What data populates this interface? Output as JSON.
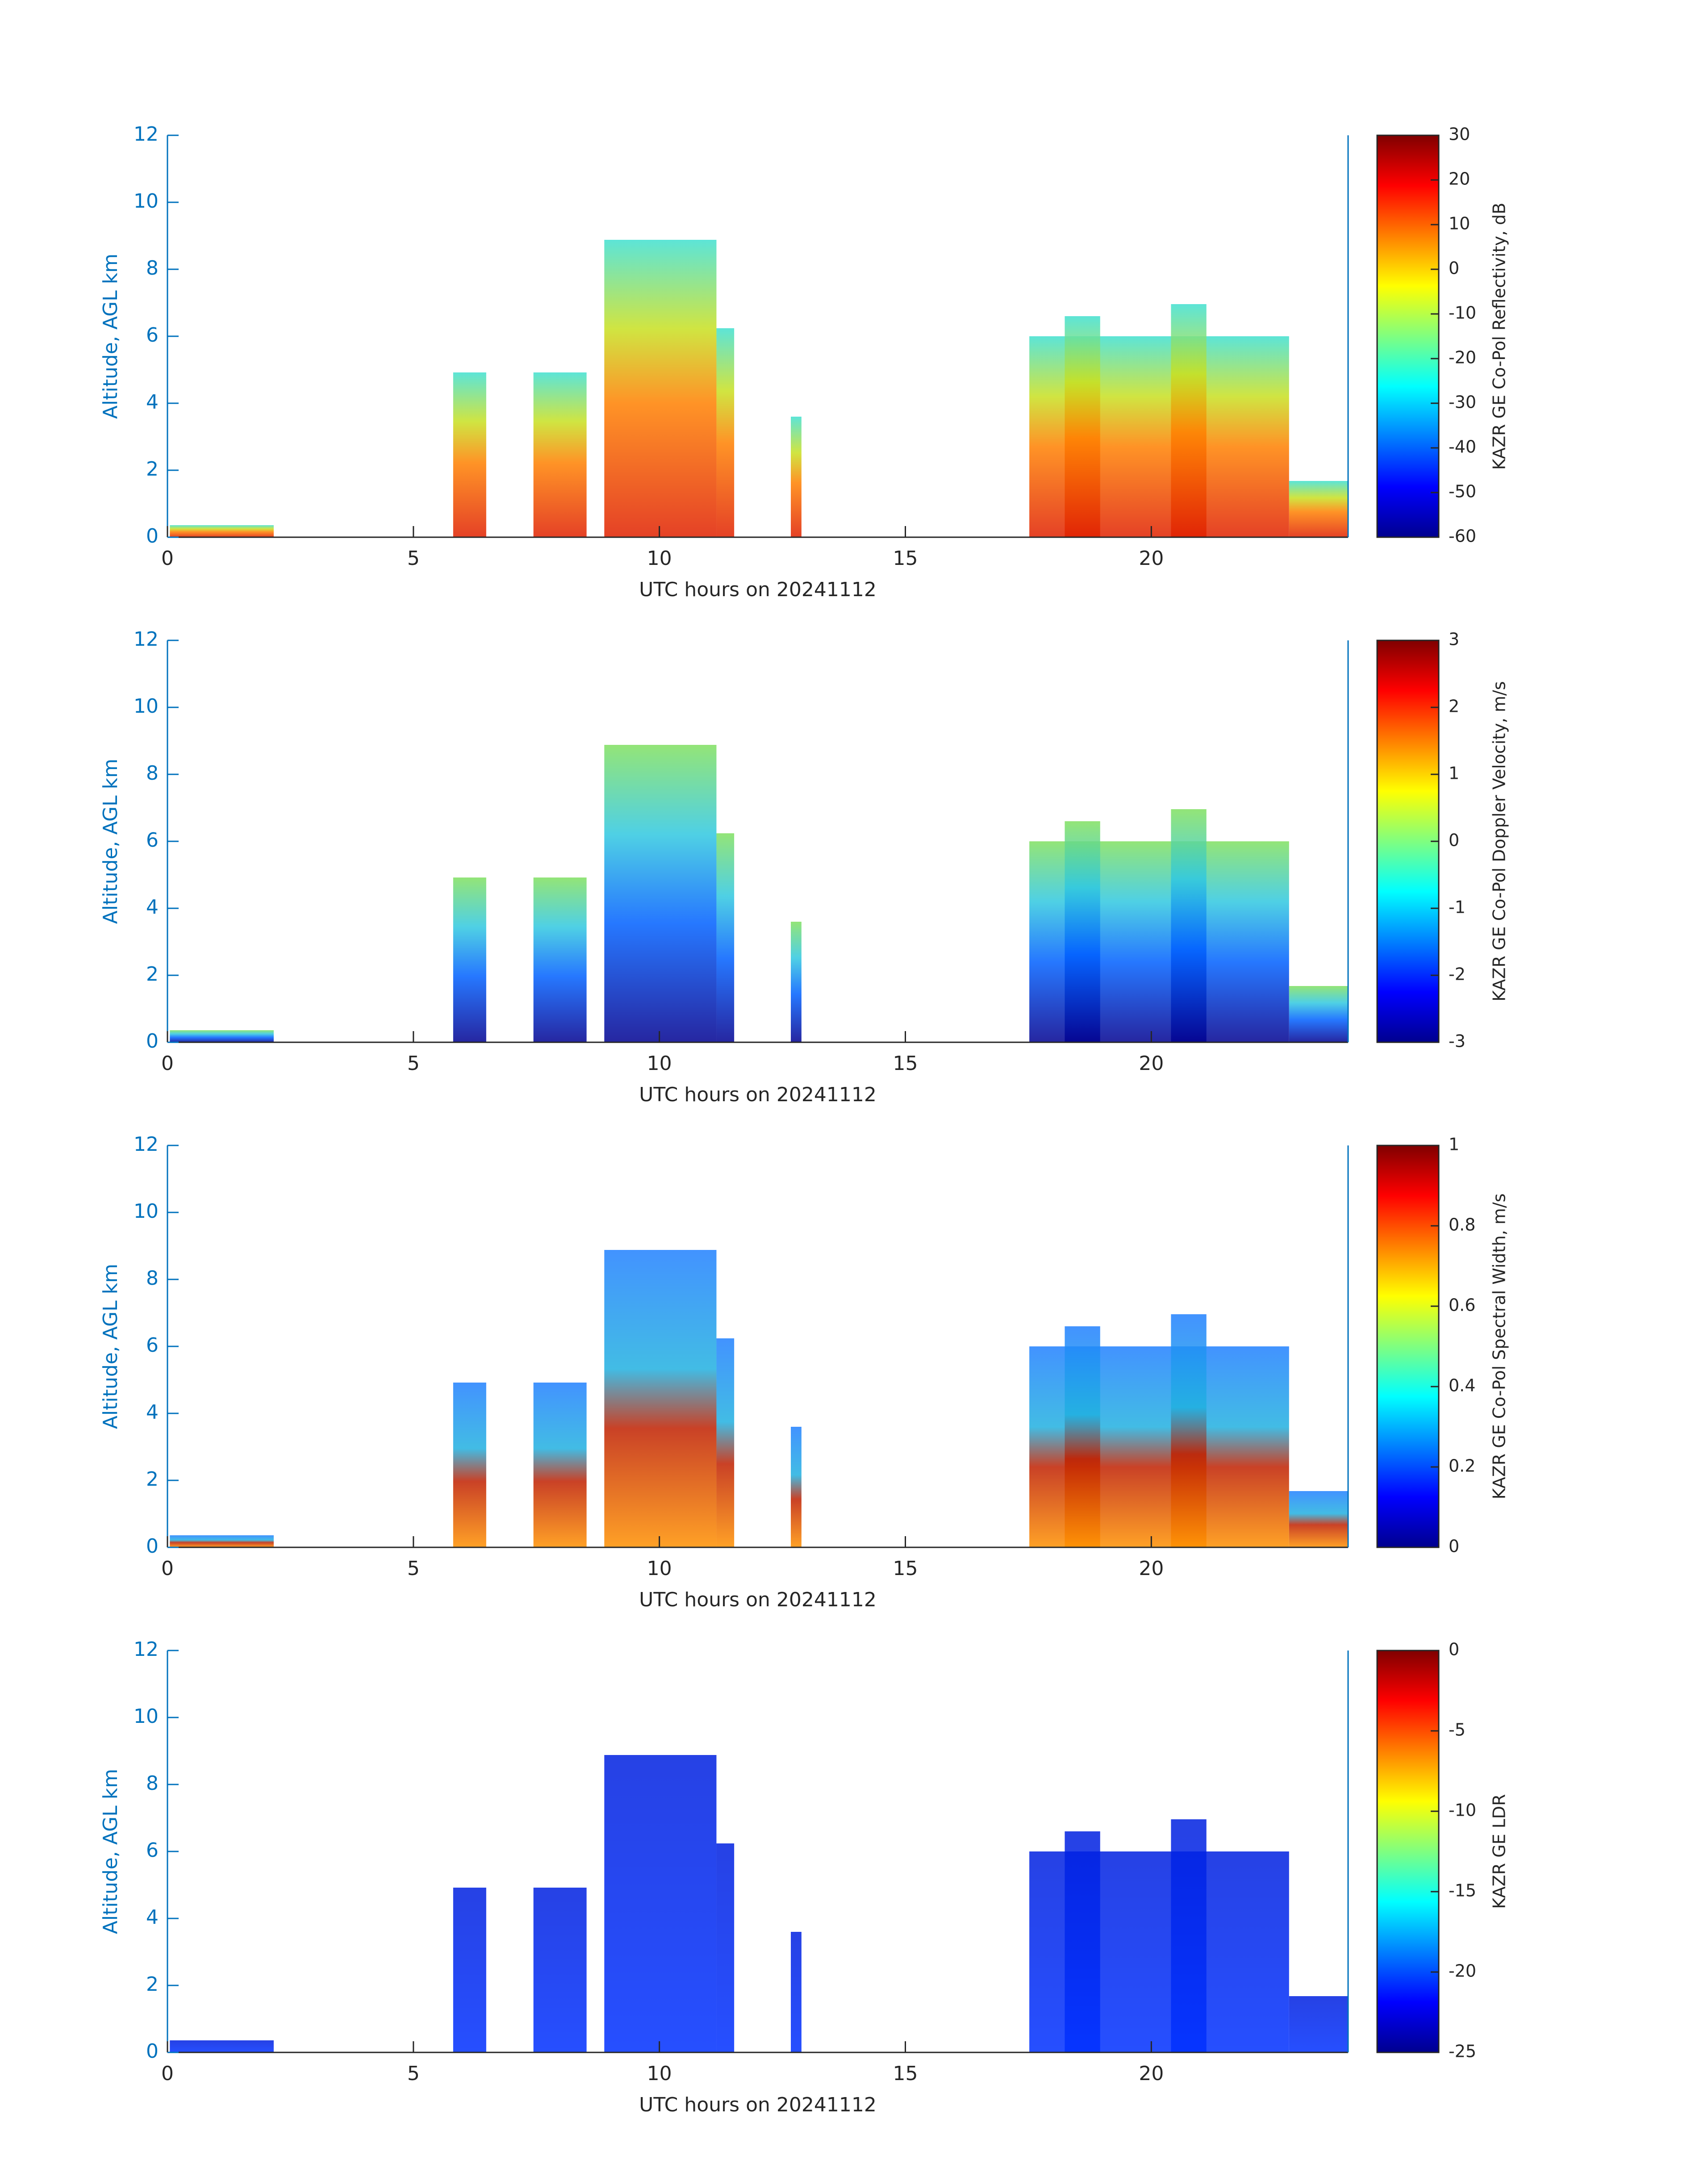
{
  "chart_data": [
    {
      "type": "heatmap",
      "x_label": "UTC hours on 20241112",
      "y_label": "Altitude, AGL km",
      "xlim": [
        0,
        24
      ],
      "xticks": [
        0,
        5,
        10,
        15,
        20
      ],
      "ylim": [
        0,
        12
      ],
      "yticks": [
        0,
        2,
        4,
        6,
        8,
        10,
        12
      ],
      "colorbar": {
        "label": "KAZR GE Co-Pol Reflectivity, dB",
        "colormap": "jet",
        "lim": [
          -60,
          30
        ],
        "ticks": [
          -60,
          -50,
          -40,
          -30,
          -20,
          -10,
          0,
          10,
          20,
          30
        ]
      }
    },
    {
      "type": "heatmap",
      "x_label": "UTC hours on 20241112",
      "y_label": "Altitude, AGL km",
      "xlim": [
        0,
        24
      ],
      "xticks": [
        0,
        5,
        10,
        15,
        20
      ],
      "ylim": [
        0,
        12
      ],
      "yticks": [
        0,
        2,
        4,
        6,
        8,
        10,
        12
      ],
      "colorbar": {
        "label": "KAZR GE Co-Pol Doppler Velocity, m/s",
        "colormap": "jet",
        "lim": [
          -3,
          3
        ],
        "ticks": [
          -3,
          -2,
          -1,
          0,
          1,
          2,
          3
        ]
      }
    },
    {
      "type": "heatmap",
      "x_label": "UTC hours on 20241112",
      "y_label": "Altitude, AGL km",
      "xlim": [
        0,
        24
      ],
      "xticks": [
        0,
        5,
        10,
        15,
        20
      ],
      "ylim": [
        0,
        12
      ],
      "yticks": [
        0,
        2,
        4,
        6,
        8,
        10,
        12
      ],
      "colorbar": {
        "label": "KAZR GE Co-Pol Spectral Width, m/s",
        "colormap": "jet",
        "lim": [
          0,
          1
        ],
        "ticks": [
          0,
          0.2,
          0.4,
          0.6,
          0.8,
          1
        ]
      }
    },
    {
      "type": "heatmap",
      "x_label": "UTC hours on 20241112",
      "y_label": "Altitude, AGL km",
      "xlim": [
        0,
        24
      ],
      "xticks": [
        0,
        5,
        10,
        15,
        20
      ],
      "ylim": [
        0,
        12
      ],
      "yticks": [
        0,
        2,
        4,
        6,
        8,
        10,
        12
      ],
      "colorbar": {
        "label": "KAZR GE LDR",
        "colormap": "jet",
        "lim": [
          -25,
          0
        ],
        "ticks": [
          -25,
          -20,
          -15,
          -10,
          -5,
          0
        ]
      }
    }
  ]
}
